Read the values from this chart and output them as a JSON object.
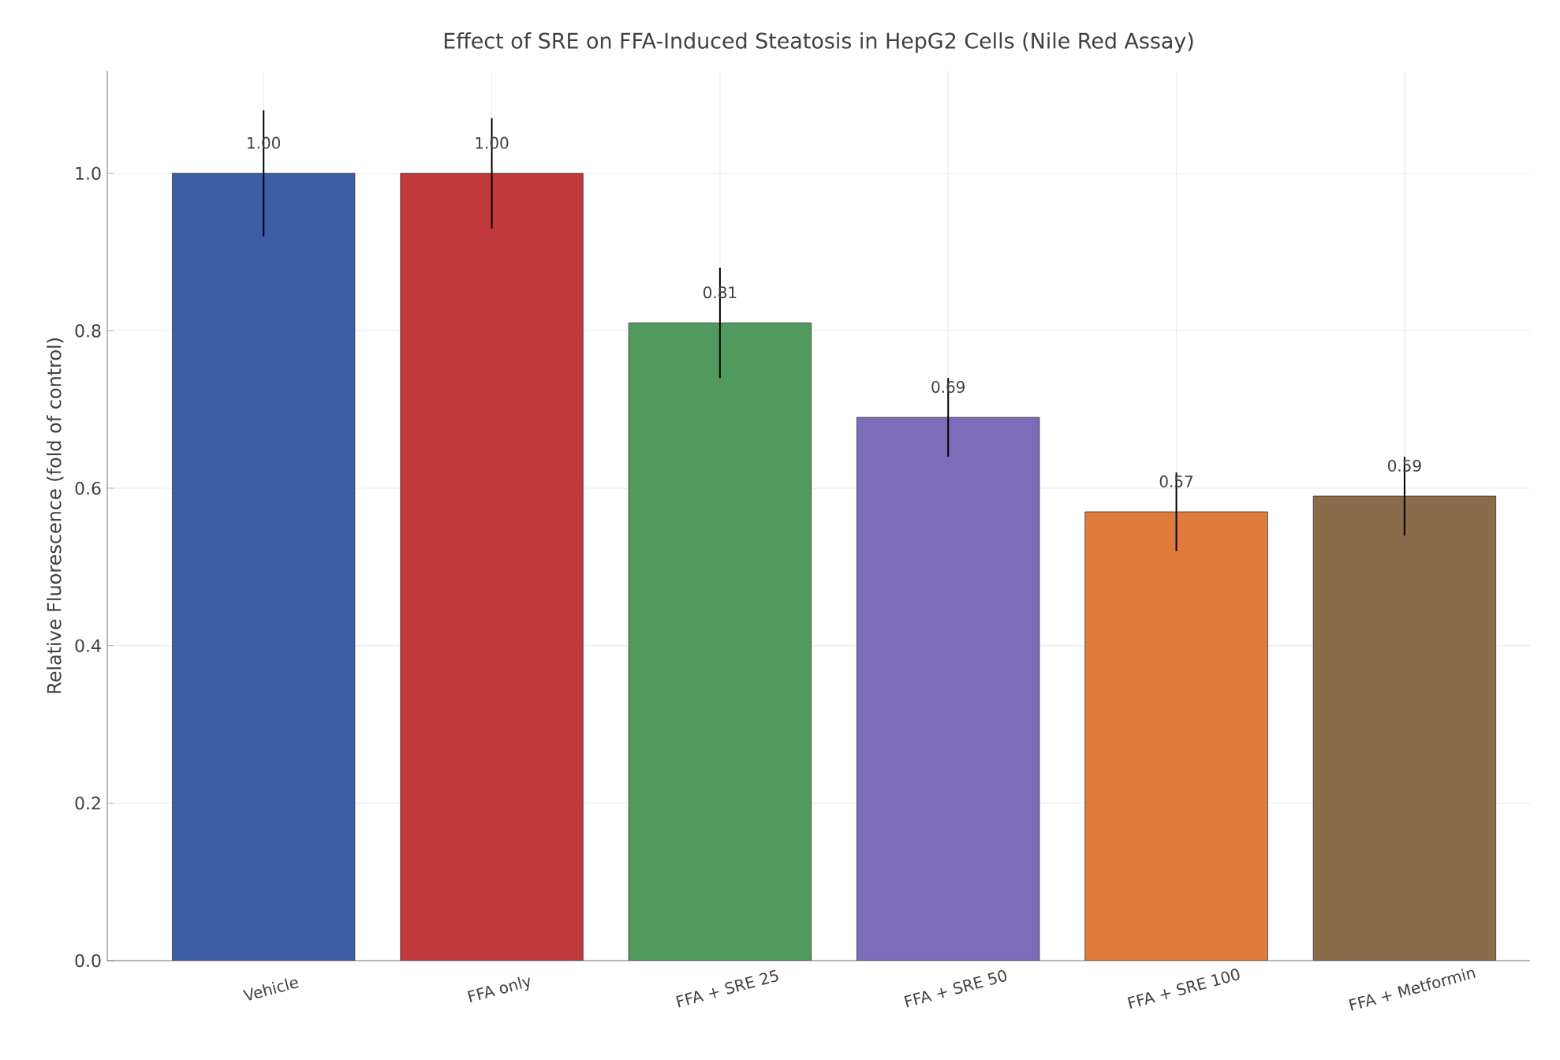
{
  "chart_data": {
    "type": "bar",
    "title": "Effect of SRE on FFA-Induced Steatosis in HepG2 Cells (Nile Red Assay)",
    "ylabel": "Relative Fluorescence (fold of control)",
    "categories": [
      "Vehicle",
      "FFA only",
      "FFA + SRE 25",
      "FFA + SRE 50",
      "FFA + SRE 100",
      "FFA + Metformin"
    ],
    "values": [
      1.0,
      1.0,
      0.81,
      0.69,
      0.57,
      0.59
    ],
    "value_labels": [
      "1.00",
      "1.00",
      "0.81",
      "0.69",
      "0.57",
      "0.59"
    ],
    "errors": [
      0.08,
      0.07,
      0.07,
      0.05,
      0.05,
      0.05
    ],
    "colors": [
      "#3b5ea6",
      "#c0393b",
      "#4f9a5c",
      "#7d6db8",
      "#e07b3c",
      "#8c6b4b"
    ],
    "ylim": [
      0,
      1.13
    ],
    "yticks": [
      {
        "value": 0,
        "label": "0.0"
      },
      0.2,
      0.4,
      0.6,
      0.8,
      {
        "value": 1,
        "label": "1.0"
      }
    ],
    "grid": true
  }
}
